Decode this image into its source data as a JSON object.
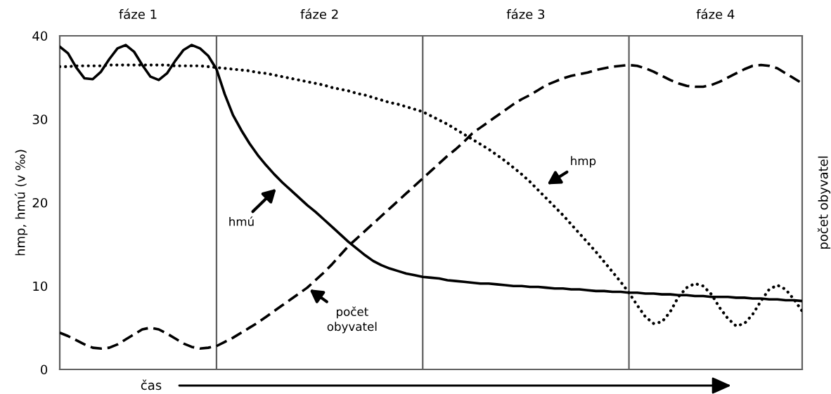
{
  "chart_data": {
    "type": "line",
    "ylabel": "hmp, hmú (v ‰)",
    "y2label": "počet obyvatel",
    "xlabel": "čas",
    "categories": [
      null,
      null,
      null,
      null,
      null,
      null,
      null,
      null,
      null,
      null,
      null,
      null,
      null,
      null,
      null,
      null,
      null,
      null,
      null,
      null,
      null,
      null,
      null,
      null,
      null,
      null,
      null,
      null,
      null,
      null,
      null,
      null,
      null,
      null,
      null,
      null,
      null,
      null,
      null,
      null,
      null,
      null,
      null,
      null,
      null,
      null,
      null,
      null,
      null,
      null,
      null,
      null,
      null,
      null,
      null,
      null,
      null,
      null,
      null,
      null,
      null,
      null,
      null,
      null,
      null,
      null,
      null,
      null,
      null,
      null,
      null,
      null,
      null,
      null,
      null,
      null,
      null,
      null,
      null,
      null,
      null,
      null,
      null,
      null,
      null,
      null,
      null,
      null,
      null,
      null,
      null
    ],
    "series": [
      {
        "color": "#000000",
        "line_style": "solid",
        "values": [
          38.7,
          37.9,
          36.2,
          34.9,
          34.8,
          35.7,
          37.2,
          38.5,
          38.9,
          38.1,
          36.5,
          35.1,
          34.7,
          35.5,
          37.0,
          38.3,
          38.9,
          38.5,
          37.6,
          36.0,
          33.0,
          30.5,
          28.7,
          27.1,
          25.7,
          24.5,
          23.4,
          22.4,
          21.5,
          20.6,
          19.7,
          18.9,
          18.0,
          17.1,
          16.2,
          15.3,
          14.5,
          13.7,
          13.0,
          12.5,
          12.1,
          11.8,
          11.5,
          11.3,
          11.1,
          11.0,
          10.9,
          10.7,
          10.6,
          10.5,
          10.4,
          10.3,
          10.3,
          10.2,
          10.1,
          10.0,
          10.0,
          9.9,
          9.9,
          9.8,
          9.7,
          9.7,
          9.6,
          9.6,
          9.5,
          9.4,
          9.4,
          9.3,
          9.3,
          9.2,
          9.2,
          9.1,
          9.1,
          9.0,
          9.0,
          8.9,
          8.9,
          8.8,
          8.8,
          8.7,
          8.7,
          8.7,
          8.6,
          8.6,
          8.5,
          8.5,
          8.4,
          8.4,
          8.3,
          8.3,
          8.2
        ]
      },
      {
        "color": "#000000",
        "line_style": "dotted",
        "values": [
          36.3,
          36.3,
          36.4,
          36.4,
          36.4,
          36.4,
          36.5,
          36.5,
          36.5,
          36.5,
          36.5,
          36.5,
          36.5,
          36.5,
          36.4,
          36.4,
          36.4,
          36.4,
          36.3,
          36.2,
          36.1,
          36.0,
          35.9,
          35.8,
          35.6,
          35.5,
          35.3,
          35.1,
          34.9,
          34.7,
          34.5,
          34.3,
          34.1,
          33.8,
          33.6,
          33.4,
          33.1,
          32.9,
          32.6,
          32.3,
          32.0,
          31.8,
          31.5,
          31.2,
          30.9,
          30.4,
          29.9,
          29.4,
          28.8,
          28.2,
          27.6,
          27.0,
          26.4,
          25.7,
          25.0,
          24.2,
          23.4,
          22.5,
          21.5,
          20.5,
          19.5,
          18.5,
          17.4,
          16.3,
          15.2,
          14.1,
          12.9,
          11.7,
          10.5,
          9.2,
          7.7,
          6.3,
          5.5,
          5.7,
          6.9,
          8.7,
          9.8,
          10.3,
          10.0,
          9.0,
          7.4,
          6.1,
          5.2,
          5.5,
          6.6,
          8.2,
          9.6,
          10.1,
          9.6,
          8.4,
          7.0
        ]
      },
      {
        "color": "#000000",
        "line_style": "dashed",
        "values": [
          4.4,
          4.0,
          3.5,
          3.0,
          2.6,
          2.5,
          2.6,
          3.0,
          3.6,
          4.2,
          4.8,
          5.0,
          4.8,
          4.3,
          3.7,
          3.1,
          2.7,
          2.5,
          2.6,
          2.8,
          3.3,
          3.8,
          4.4,
          5.0,
          5.6,
          6.3,
          7.0,
          7.7,
          8.4,
          9.1,
          9.8,
          10.7,
          11.6,
          12.6,
          13.7,
          14.8,
          15.7,
          16.6,
          17.5,
          18.4,
          19.3,
          20.2,
          21.1,
          22.0,
          22.9,
          23.8,
          24.7,
          25.6,
          26.4,
          27.3,
          28.3,
          29.0,
          29.7,
          30.4,
          31.1,
          31.8,
          32.4,
          32.9,
          33.5,
          34.1,
          34.5,
          34.9,
          35.2,
          35.4,
          35.6,
          35.9,
          36.1,
          36.3,
          36.4,
          36.5,
          36.4,
          36.1,
          35.7,
          35.2,
          34.7,
          34.3,
          34.0,
          33.9,
          33.9,
          34.1,
          34.5,
          35.0,
          35.5,
          36.0,
          36.4,
          36.5,
          36.4,
          36.1,
          35.5,
          34.9,
          34.3
        ]
      }
    ],
    "ylim": [
      0,
      40
    ],
    "yticks": [
      0,
      10,
      20,
      30,
      40
    ],
    "tick_labels": "y",
    "grid": "x",
    "annotations": [
      "fáze 1",
      "fáze 2",
      "fáze 3",
      "fáze 4",
      "hmú",
      "hmp",
      "počet obyvatel"
    ]
  }
}
